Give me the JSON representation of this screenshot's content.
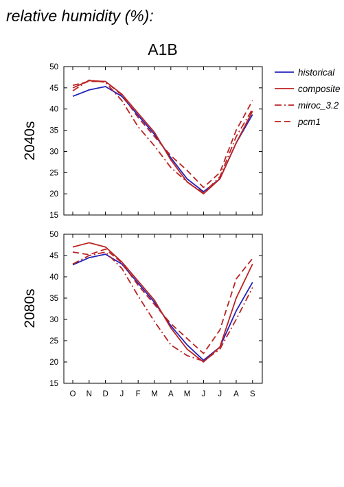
{
  "figure": {
    "title": "relative humidity (%):",
    "scenario": "A1B"
  },
  "legend": [
    {
      "name": "historical",
      "color": "#2222bb",
      "dash": "solid"
    },
    {
      "name": "composite",
      "color": "#bb2222",
      "dash": "solid"
    },
    {
      "name": "miroc_3.2",
      "color": "#bb2222",
      "dash": "dashdot"
    },
    {
      "name": "pcm1",
      "color": "#bb2222",
      "dash": "dashed"
    }
  ],
  "chart_data": [
    {
      "type": "line",
      "panel_label": "2040s",
      "categories": [
        "O",
        "N",
        "D",
        "J",
        "F",
        "M",
        "A",
        "M",
        "J",
        "J",
        "A",
        "S"
      ],
      "ylim": [
        15,
        50
      ],
      "yticks": [
        15,
        20,
        25,
        30,
        35,
        40,
        45,
        50
      ],
      "series": [
        {
          "name": "historical",
          "values": [
            43.0,
            44.5,
            45.3,
            43.0,
            38.5,
            34.0,
            28.5,
            23.5,
            20.5,
            23.5,
            32.0,
            38.7
          ]
        },
        {
          "name": "composite",
          "values": [
            45.0,
            46.7,
            46.5,
            43.5,
            39.0,
            34.5,
            28.0,
            22.8,
            20.0,
            23.5,
            32.0,
            39.5
          ]
        },
        {
          "name": "miroc_3.2",
          "values": [
            44.3,
            46.8,
            46.3,
            42.0,
            35.8,
            31.3,
            26.2,
            22.8,
            20.2,
            24.0,
            33.5,
            40.0
          ]
        },
        {
          "name": "pcm1",
          "values": [
            45.6,
            46.5,
            46.5,
            43.3,
            38.0,
            33.5,
            29.0,
            25.5,
            21.5,
            25.0,
            35.0,
            42.0
          ]
        }
      ]
    },
    {
      "type": "line",
      "panel_label": "2080s",
      "categories": [
        "O",
        "N",
        "D",
        "J",
        "F",
        "M",
        "A",
        "M",
        "J",
        "J",
        "A",
        "S"
      ],
      "ylim": [
        15,
        50
      ],
      "yticks": [
        15,
        20,
        25,
        30,
        35,
        40,
        45,
        50
      ],
      "series": [
        {
          "name": "historical",
          "values": [
            42.8,
            44.5,
            45.3,
            43.0,
            38.5,
            34.0,
            28.5,
            24.0,
            20.4,
            23.5,
            32.0,
            38.7
          ]
        },
        {
          "name": "composite",
          "values": [
            47.0,
            48.0,
            47.0,
            43.5,
            39.0,
            34.5,
            28.0,
            23.0,
            20.0,
            23.5,
            35.0,
            43.0
          ]
        },
        {
          "name": "miroc_3.2",
          "values": [
            43.0,
            45.0,
            45.8,
            42.0,
            35.5,
            29.5,
            24.0,
            21.5,
            20.2,
            23.0,
            30.0,
            37.5
          ]
        },
        {
          "name": "pcm1",
          "values": [
            45.8,
            45.2,
            46.5,
            43.3,
            38.0,
            33.5,
            29.0,
            25.5,
            22.0,
            27.5,
            39.5,
            44.3
          ]
        }
      ]
    }
  ]
}
